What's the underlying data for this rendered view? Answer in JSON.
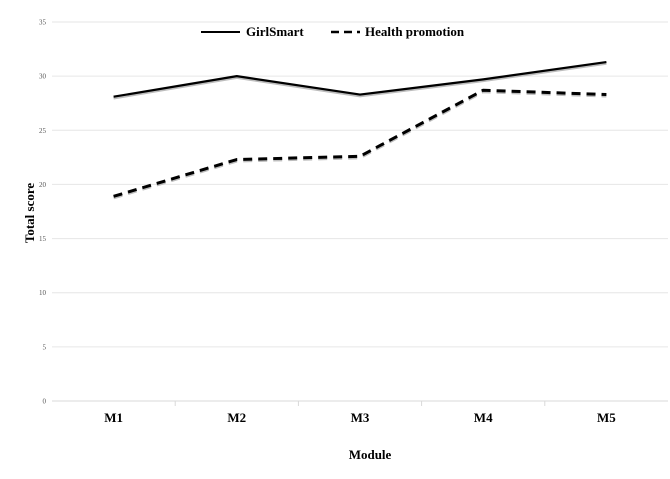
{
  "chart_data": {
    "type": "line",
    "categories": [
      "M1",
      "M2",
      "M3",
      "M4",
      "M5"
    ],
    "series": [
      {
        "name": "GirlSmart",
        "values": [
          28.1,
          30.0,
          28.3,
          29.7,
          31.3
        ],
        "style": "solid",
        "color": "#000000"
      },
      {
        "name": "Health promotion",
        "values": [
          18.9,
          22.3,
          22.6,
          28.7,
          28.3
        ],
        "style": "dashed",
        "color": "#000000"
      }
    ],
    "xlabel": "Module",
    "ylabel": "Total score",
    "ylim": [
      0,
      35
    ],
    "yticks": [
      "0",
      "5",
      "10",
      "15",
      "20",
      "25",
      "30",
      "35"
    ],
    "grid": true,
    "legend_position": "top"
  }
}
